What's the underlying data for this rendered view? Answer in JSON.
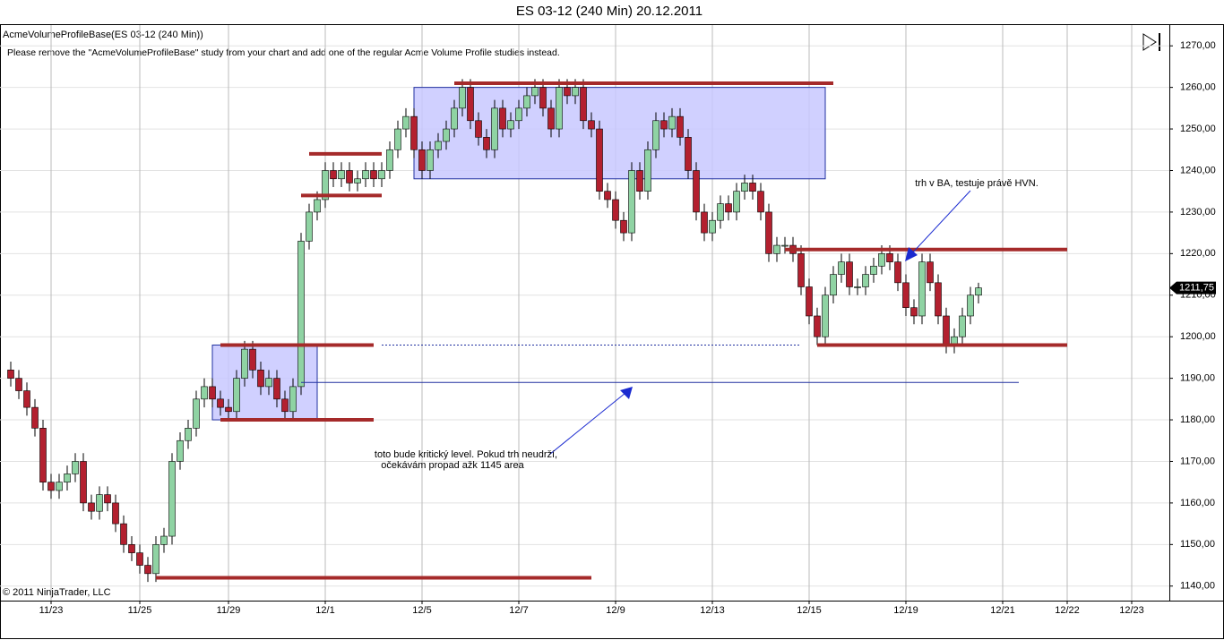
{
  "chart_data": {
    "type": "candlestick",
    "title": "ES 03-12 (240 Min)  20.12.2011",
    "study_label": "AcmeVolumeProfileBase(ES 03-12 (240 Min))",
    "message": "Please remove the \"AcmeVolumeProfileBase\" study from your chart and add one of the regular Acme Volume Profile studies instead.",
    "copyright": "© 2011 NinjaTrader, LLC",
    "annotations": [
      {
        "lines": [
          "trh v BA, testuje právě HVN."
        ]
      },
      {
        "lines": [
          "toto bude kritický level. Pokud trh neudrží,",
          "očekávám propad ažk 1145 area"
        ]
      }
    ],
    "categories": [
      null,
      null,
      null,
      null,
      null,
      "11/23",
      null,
      null,
      null,
      null,
      null,
      null,
      null,
      null,
      null,
      null,
      "11/25",
      null,
      null,
      null,
      null,
      null,
      null,
      null,
      null,
      null,
      null,
      "11/29",
      null,
      null,
      null,
      null,
      null,
      null,
      null,
      null,
      null,
      null,
      null,
      "12/1",
      null,
      null,
      null,
      null,
      null,
      null,
      null,
      null,
      null,
      null,
      null,
      "12/5",
      null,
      null,
      null,
      null,
      null,
      null,
      null,
      null,
      null,
      null,
      null,
      "12/7",
      null,
      null,
      null,
      null,
      null,
      null,
      null,
      null,
      null,
      null,
      null,
      "12/9",
      null,
      null,
      null,
      null,
      null,
      null,
      null,
      null,
      null,
      null,
      null,
      "12/13",
      null,
      null,
      null,
      null,
      null,
      null,
      null,
      null,
      null,
      null,
      null,
      "12/15",
      null,
      null,
      null,
      null,
      null,
      null,
      null,
      null,
      null,
      null,
      null,
      "12/19",
      null,
      null,
      null,
      null,
      null,
      null,
      null,
      null,
      null,
      null,
      null,
      "12/21",
      null,
      null,
      null,
      null,
      null,
      null,
      null,
      "12/22",
      null,
      null,
      null,
      null,
      null,
      null,
      null,
      "12/23",
      null,
      null,
      null
    ],
    "open": [
      1192,
      1190,
      1187,
      1183,
      1178,
      1165,
      1163,
      1165,
      1167,
      1170,
      1160,
      1158,
      1162,
      1160,
      1155,
      1150,
      1148,
      1145,
      1143,
      1150,
      1152,
      1170,
      1175,
      1178,
      1185,
      1188,
      1185,
      1183,
      1182,
      1190,
      1197,
      1192,
      1188,
      1190,
      1185,
      1182,
      1188,
      1223,
      1230,
      1233,
      1240,
      1238,
      1240,
      1237,
      1238,
      1240,
      1238,
      1240,
      1245,
      1250,
      1253,
      1245,
      1240,
      1245,
      1247,
      1250,
      1255,
      1260,
      1252,
      1248,
      1245,
      1255,
      1250,
      1252,
      1255,
      1258,
      1260,
      1255,
      1250,
      1260,
      1258,
      1260,
      1252,
      1250,
      1235,
      1233,
      1228,
      1225,
      1240,
      1235,
      1245,
      1252,
      1250,
      1253,
      1248,
      1240,
      1230,
      1225,
      1228,
      1232,
      1230,
      1235,
      1237,
      1235,
      1230,
      1220,
      1222,
      1222,
      1220,
      1212,
      1205,
      1200,
      1210,
      1215,
      1218,
      1212,
      1212,
      1215,
      1217,
      1220,
      1218,
      1213,
      1207,
      1205,
      1218,
      1213,
      1205,
      1198,
      1200,
      1205,
      1210,
      null,
      null,
      null,
      null,
      null,
      null,
      null,
      null,
      null,
      null,
      null,
      null,
      null,
      null,
      null,
      null,
      null,
      null,
      null,
      null,
      null,
      null
    ],
    "high": [
      1194,
      1192,
      1189,
      1185,
      1180,
      1167,
      1167,
      1169,
      1172,
      1172,
      1162,
      1164,
      1164,
      1162,
      1157,
      1152,
      1150,
      1147,
      1152,
      1154,
      1172,
      1177,
      1180,
      1187,
      1190,
      1190,
      1187,
      1185,
      1192,
      1199,
      1199,
      1194,
      1192,
      1192,
      1187,
      1190,
      1225,
      1232,
      1235,
      1242,
      1242,
      1242,
      1242,
      1240,
      1242,
      1242,
      1242,
      1247,
      1252,
      1255,
      1255,
      1247,
      1247,
      1249,
      1252,
      1257,
      1262,
      1262,
      1254,
      1250,
      1257,
      1257,
      1254,
      1257,
      1260,
      1262,
      1262,
      1257,
      1262,
      1262,
      1262,
      1262,
      1254,
      1252,
      1237,
      1235,
      1230,
      1242,
      1242,
      1247,
      1254,
      1254,
      1255,
      1255,
      1250,
      1242,
      1232,
      1230,
      1234,
      1234,
      1237,
      1239,
      1239,
      1237,
      1232,
      1224,
      1224,
      1224,
      1222,
      1214,
      1207,
      1212,
      1217,
      1220,
      1220,
      1214,
      1217,
      1219,
      1222,
      1222,
      1220,
      1215,
      1209,
      1220,
      1220,
      1215,
      1207,
      1202,
      1207,
      1212,
      1213,
      null,
      null,
      null,
      null,
      null,
      null,
      null,
      null,
      null,
      null,
      null,
      null,
      null,
      null,
      null,
      null,
      null,
      null,
      null,
      null,
      null,
      null
    ],
    "low": [
      1188,
      1185,
      1181,
      1176,
      1163,
      1161,
      1161,
      1163,
      1165,
      1158,
      1156,
      1156,
      1158,
      1153,
      1148,
      1146,
      1143,
      1141,
      1141,
      1148,
      1150,
      1168,
      1173,
      1176,
      1183,
      1183,
      1181,
      1180,
      1180,
      1188,
      1190,
      1186,
      1186,
      1183,
      1180,
      1180,
      1186,
      1221,
      1228,
      1231,
      1236,
      1236,
      1235,
      1235,
      1236,
      1236,
      1236,
      1238,
      1243,
      1248,
      1243,
      1238,
      1238,
      1243,
      1245,
      1248,
      1253,
      1250,
      1246,
      1243,
      1243,
      1248,
      1248,
      1250,
      1253,
      1256,
      1253,
      1248,
      1248,
      1256,
      1256,
      1250,
      1248,
      1233,
      1231,
      1226,
      1223,
      1223,
      1233,
      1233,
      1243,
      1248,
      1248,
      1246,
      1238,
      1228,
      1223,
      1223,
      1226,
      1228,
      1228,
      1233,
      1233,
      1228,
      1218,
      1218,
      1220,
      1218,
      1210,
      1203,
      1198,
      1198,
      1208,
      1213,
      1210,
      1210,
      1210,
      1213,
      1215,
      1216,
      1211,
      1205,
      1203,
      1203,
      1211,
      1203,
      1196,
      1196,
      1198,
      1203,
      1208,
      null,
      null,
      null,
      null,
      null,
      null,
      null,
      null,
      null,
      null,
      null,
      null,
      null,
      null,
      null,
      null,
      null,
      null,
      null,
      null,
      null,
      null
    ],
    "close": [
      1190,
      1187,
      1183,
      1178,
      1165,
      1163,
      1165,
      1167,
      1170,
      1160,
      1158,
      1162,
      1160,
      1155,
      1150,
      1148,
      1145,
      1143,
      1150,
      1152,
      1170,
      1175,
      1178,
      1185,
      1188,
      1185,
      1183,
      1182,
      1190,
      1197,
      1192,
      1188,
      1190,
      1185,
      1182,
      1188,
      1223,
      1230,
      1233,
      1240,
      1238,
      1240,
      1237,
      1238,
      1240,
      1238,
      1240,
      1245,
      1250,
      1253,
      1245,
      1240,
      1245,
      1247,
      1250,
      1255,
      1260,
      1252,
      1248,
      1245,
      1255,
      1250,
      1252,
      1255,
      1258,
      1260,
      1255,
      1250,
      1260,
      1258,
      1260,
      1252,
      1250,
      1235,
      1233,
      1228,
      1225,
      1240,
      1235,
      1245,
      1252,
      1250,
      1253,
      1248,
      1240,
      1230,
      1225,
      1228,
      1232,
      1230,
      1235,
      1237,
      1235,
      1230,
      1220,
      1222,
      1222,
      1220,
      1212,
      1205,
      1200,
      1210,
      1215,
      1218,
      1212,
      1212,
      1215,
      1217,
      1220,
      1218,
      1213,
      1207,
      1205,
      1218,
      1213,
      1205,
      1198,
      1200,
      1205,
      1210,
      1211.75,
      null,
      null,
      null,
      null,
      null,
      null,
      null,
      null,
      null,
      null,
      null,
      null,
      null,
      null,
      null,
      null,
      null,
      null,
      null,
      null,
      null,
      null
    ],
    "up_color": "#8fd3a3",
    "down_color": "#b3202f",
    "last_price": {
      "value": 1211.75,
      "label": "1211,75"
    },
    "ylim": [
      1136.5,
      1275
    ],
    "yticks": [
      {
        "value": 1140,
        "label": "1140,00"
      },
      {
        "value": 1150,
        "label": "1150,00"
      },
      {
        "value": 1160,
        "label": "1160,00"
      },
      {
        "value": 1170,
        "label": "1170,00"
      },
      {
        "value": 1180,
        "label": "1180,00"
      },
      {
        "value": 1190,
        "label": "1190,00"
      },
      {
        "value": 1200,
        "label": "1200,00"
      },
      {
        "value": 1210,
        "label": "1210,00"
      },
      {
        "value": 1220,
        "label": "1220,00"
      },
      {
        "value": 1230,
        "label": "1230,00"
      },
      {
        "value": 1240,
        "label": "1240,00"
      },
      {
        "value": 1250,
        "label": "1250,00"
      },
      {
        "value": 1260,
        "label": "1260,00"
      },
      {
        "value": 1270,
        "label": "1270,00"
      }
    ],
    "grid": true,
    "boxes": [
      {
        "low": 1180,
        "high": 1198,
        "span": [
          25,
          38
        ],
        "color": "#c8c8ff"
      },
      {
        "low": 1238,
        "high": 1260,
        "span": [
          50,
          101
        ],
        "color": "#c8c8ff"
      }
    ],
    "levels": [
      {
        "price": 1142,
        "span": [
          18,
          72
        ],
        "color": "#a52a2a",
        "style": "thick"
      },
      {
        "price": 1198,
        "span": [
          26,
          45
        ],
        "color": "#a52a2a",
        "style": "thick"
      },
      {
        "price": 1180,
        "span": [
          26,
          45
        ],
        "color": "#a52a2a",
        "style": "thick"
      },
      {
        "price": 1244,
        "span": [
          37,
          46
        ],
        "color": "#a52a2a",
        "style": "thick"
      },
      {
        "price": 1234,
        "span": [
          36,
          46
        ],
        "color": "#a52a2a",
        "style": "thick"
      },
      {
        "price": 1261,
        "span": [
          55,
          102
        ],
        "color": "#a52a2a",
        "style": "thick"
      },
      {
        "price": 1221,
        "span": [
          96,
          131
        ],
        "color": "#a52a2a",
        "style": "thick"
      },
      {
        "price": 1198,
        "span": [
          100,
          131
        ],
        "color": "#a52a2a",
        "style": "thick"
      },
      {
        "price": 1198,
        "span": [
          46,
          98
        ],
        "color": "#2030a0",
        "style": "dashed"
      },
      {
        "price": 1189,
        "span": [
          36,
          125
        ],
        "color": "#2030a0",
        "style": "thin"
      }
    ]
  }
}
